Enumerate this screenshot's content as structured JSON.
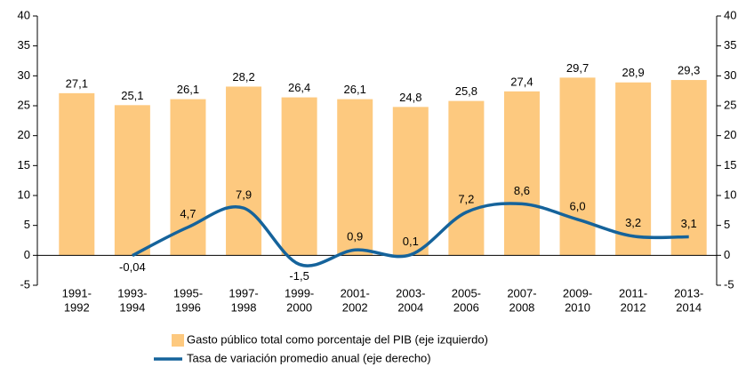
{
  "chart_data": {
    "type": "bar-line",
    "categories": [
      [
        "1991-",
        "1992"
      ],
      [
        "1993-",
        "1994"
      ],
      [
        "1995-",
        "1996"
      ],
      [
        "1997-",
        "1998"
      ],
      [
        "1999-",
        "2000"
      ],
      [
        "2001-",
        "2002"
      ],
      [
        "2003-",
        "2004"
      ],
      [
        "2005-",
        "2006"
      ],
      [
        "2007-",
        "2008"
      ],
      [
        "2009-",
        "2010"
      ],
      [
        "2011-",
        "2012"
      ],
      [
        "2013-",
        "2014"
      ]
    ],
    "series": [
      {
        "name": "Gasto público total como porcentaje del PIB (eje izquierdo)",
        "type": "bar",
        "color": "#fdc97f",
        "values": [
          27.1,
          25.1,
          26.1,
          28.2,
          26.4,
          26.1,
          24.8,
          25.8,
          27.4,
          29.7,
          28.9,
          29.3
        ],
        "value_labels": [
          "27,1",
          "25,1",
          "26,1",
          "28,2",
          "26,4",
          "26,1",
          "24,8",
          "25,8",
          "27,4",
          "29,7",
          "28,9",
          "29,3"
        ]
      },
      {
        "name": "Tasa de variación promedio anual (eje derecho)",
        "type": "line",
        "axis": "y2",
        "color": "#15639b",
        "values": [
          null,
          -0.04,
          4.7,
          7.9,
          -1.5,
          0.9,
          0.1,
          7.2,
          8.6,
          6.0,
          3.2,
          3.1
        ],
        "value_labels": [
          null,
          "-0,04",
          "4,7",
          "7,9",
          "-1,5",
          "0,9",
          "0,1",
          "7,2",
          "8,6",
          "6,0",
          "3,2",
          "3,1"
        ]
      }
    ],
    "ylim": [
      -5,
      40
    ],
    "yticks": [
      -5,
      0,
      5,
      10,
      15,
      20,
      25,
      30,
      35,
      40
    ],
    "y2lim": [
      -5,
      40
    ],
    "y2ticks": [
      -5,
      0,
      5,
      10,
      15,
      20,
      25,
      30,
      35,
      40
    ],
    "legend": "bottom"
  }
}
